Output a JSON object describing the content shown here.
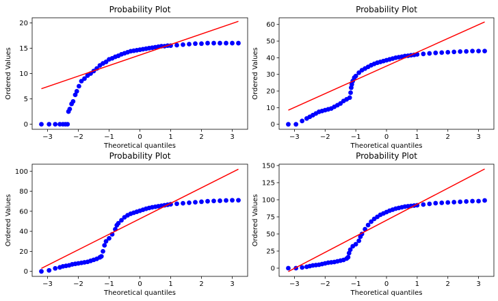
{
  "colors": {
    "points": "#0000ff",
    "fit_line": "#ff0000",
    "axes": "#000000"
  },
  "chart_data": [
    {
      "type": "scatter",
      "title": "Probability Plot",
      "xlabel": "Theoretical quantiles",
      "ylabel": "Ordered Values",
      "xlim": [
        -3.5,
        3.5
      ],
      "ylim": [
        -1,
        21
      ],
      "xticks": [
        -3,
        -2,
        -1,
        0,
        1,
        2,
        3
      ],
      "yticks": [
        0,
        5,
        10,
        15,
        20
      ],
      "fit_line": {
        "x": [
          -3.2,
          3.2
        ],
        "y": [
          7.0,
          20.3
        ]
      },
      "points": [
        [
          -3.2,
          0
        ],
        [
          -2.95,
          0
        ],
        [
          -2.75,
          0
        ],
        [
          -2.6,
          0
        ],
        [
          -2.5,
          0
        ],
        [
          -2.42,
          0
        ],
        [
          -2.35,
          0
        ],
        [
          -2.32,
          2.5
        ],
        [
          -2.28,
          3.0
        ],
        [
          -2.22,
          4.0
        ],
        [
          -2.17,
          4.5
        ],
        [
          -2.1,
          5.8
        ],
        [
          -2.05,
          6.5
        ],
        [
          -1.98,
          7.5
        ],
        [
          -1.9,
          8.5
        ],
        [
          -1.8,
          9.0
        ],
        [
          -1.7,
          9.6
        ],
        [
          -1.6,
          10.0
        ],
        [
          -1.5,
          10.5
        ],
        [
          -1.4,
          11.0
        ],
        [
          -1.3,
          11.6
        ],
        [
          -1.2,
          12.0
        ],
        [
          -1.1,
          12.3
        ],
        [
          -1.0,
          12.8
        ],
        [
          -0.9,
          13.0
        ],
        [
          -0.8,
          13.3
        ],
        [
          -0.7,
          13.5
        ],
        [
          -0.6,
          13.8
        ],
        [
          -0.5,
          14.0
        ],
        [
          -0.4,
          14.2
        ],
        [
          -0.3,
          14.4
        ],
        [
          -0.2,
          14.5
        ],
        [
          -0.1,
          14.6
        ],
        [
          0.0,
          14.7
        ],
        [
          0.1,
          14.8
        ],
        [
          0.2,
          14.9
        ],
        [
          0.3,
          15.0
        ],
        [
          0.4,
          15.1
        ],
        [
          0.5,
          15.2
        ],
        [
          0.6,
          15.3
        ],
        [
          0.7,
          15.4
        ],
        [
          0.8,
          15.4
        ],
        [
          0.9,
          15.5
        ],
        [
          1.0,
          15.5
        ],
        [
          1.2,
          15.6
        ],
        [
          1.4,
          15.7
        ],
        [
          1.6,
          15.8
        ],
        [
          1.8,
          15.9
        ],
        [
          2.0,
          15.9
        ],
        [
          2.2,
          16.0
        ],
        [
          2.4,
          16.0
        ],
        [
          2.6,
          16.0
        ],
        [
          2.8,
          16.0
        ],
        [
          3.0,
          16.0
        ],
        [
          3.2,
          16.0
        ]
      ]
    },
    {
      "type": "scatter",
      "title": "Probability Plot",
      "xlabel": "Theoretical quantiles",
      "ylabel": "Ordered Values",
      "xlim": [
        -3.5,
        3.5
      ],
      "ylim": [
        -3,
        64
      ],
      "xticks": [
        -3,
        -2,
        -1,
        0,
        1,
        2,
        3
      ],
      "yticks": [
        0,
        10,
        20,
        30,
        40,
        50,
        60
      ],
      "fit_line": {
        "x": [
          -3.2,
          3.2
        ],
        "y": [
          8.5,
          61.5
        ]
      },
      "points": [
        [
          -3.2,
          0
        ],
        [
          -2.95,
          0
        ],
        [
          -2.75,
          2
        ],
        [
          -2.6,
          3.5
        ],
        [
          -2.5,
          4.5
        ],
        [
          -2.4,
          5.5
        ],
        [
          -2.3,
          6.5
        ],
        [
          -2.2,
          7.5
        ],
        [
          -2.1,
          8
        ],
        [
          -2.0,
          8.5
        ],
        [
          -1.9,
          9
        ],
        [
          -1.8,
          9.5
        ],
        [
          -1.7,
          10.5
        ],
        [
          -1.6,
          11.5
        ],
        [
          -1.5,
          12.5
        ],
        [
          -1.4,
          14
        ],
        [
          -1.3,
          15
        ],
        [
          -1.2,
          16
        ],
        [
          -1.17,
          19
        ],
        [
          -1.15,
          22
        ],
        [
          -1.13,
          24
        ],
        [
          -1.1,
          26
        ],
        [
          -1.05,
          28
        ],
        [
          -1.0,
          29
        ],
        [
          -0.9,
          31
        ],
        [
          -0.8,
          32.5
        ],
        [
          -0.7,
          33.5
        ],
        [
          -0.6,
          34.5
        ],
        [
          -0.5,
          35.5
        ],
        [
          -0.4,
          36.3
        ],
        [
          -0.3,
          37
        ],
        [
          -0.2,
          37.5
        ],
        [
          -0.1,
          38
        ],
        [
          0.0,
          38.5
        ],
        [
          0.1,
          39
        ],
        [
          0.2,
          39.5
        ],
        [
          0.3,
          40
        ],
        [
          0.4,
          40.3
        ],
        [
          0.5,
          40.6
        ],
        [
          0.6,
          41
        ],
        [
          0.7,
          41.2
        ],
        [
          0.8,
          41.5
        ],
        [
          0.9,
          41.7
        ],
        [
          1.0,
          42
        ],
        [
          1.2,
          42.3
        ],
        [
          1.4,
          42.6
        ],
        [
          1.6,
          42.9
        ],
        [
          1.8,
          43.1
        ],
        [
          2.0,
          43.3
        ],
        [
          2.2,
          43.5
        ],
        [
          2.4,
          43.7
        ],
        [
          2.6,
          43.8
        ],
        [
          2.8,
          44
        ],
        [
          3.0,
          44
        ],
        [
          3.2,
          44
        ]
      ]
    },
    {
      "type": "scatter",
      "title": "Probability Plot",
      "xlabel": "Theoretical quantiles",
      "ylabel": "Ordered Values",
      "xlim": [
        -3.5,
        3.5
      ],
      "ylim": [
        -5,
        107
      ],
      "xticks": [
        -3,
        -2,
        -1,
        0,
        1,
        2,
        3
      ],
      "yticks": [
        0,
        20,
        40,
        60,
        80,
        100
      ],
      "fit_line": {
        "x": [
          -3.2,
          3.2
        ],
        "y": [
          3,
          102
        ]
      },
      "points": [
        [
          -3.2,
          0
        ],
        [
          -2.95,
          1
        ],
        [
          -2.75,
          3
        ],
        [
          -2.6,
          4
        ],
        [
          -2.5,
          5
        ],
        [
          -2.4,
          5.5
        ],
        [
          -2.3,
          6
        ],
        [
          -2.2,
          7
        ],
        [
          -2.1,
          7.5
        ],
        [
          -2.0,
          8
        ],
        [
          -1.9,
          8.5
        ],
        [
          -1.8,
          9
        ],
        [
          -1.7,
          9.5
        ],
        [
          -1.6,
          10.5
        ],
        [
          -1.5,
          11.5
        ],
        [
          -1.4,
          12.5
        ],
        [
          -1.3,
          14
        ],
        [
          -1.25,
          15
        ],
        [
          -1.2,
          20
        ],
        [
          -1.15,
          26
        ],
        [
          -1.1,
          30
        ],
        [
          -1.0,
          33
        ],
        [
          -0.9,
          37
        ],
        [
          -0.8,
          42
        ],
        [
          -0.75,
          46
        ],
        [
          -0.7,
          48
        ],
        [
          -0.6,
          51
        ],
        [
          -0.5,
          54
        ],
        [
          -0.4,
          56
        ],
        [
          -0.3,
          57.5
        ],
        [
          -0.2,
          58.5
        ],
        [
          -0.1,
          59.5
        ],
        [
          0.0,
          60.5
        ],
        [
          0.1,
          61.5
        ],
        [
          0.2,
          62.5
        ],
        [
          0.3,
          63.3
        ],
        [
          0.4,
          64
        ],
        [
          0.5,
          64.5
        ],
        [
          0.6,
          65
        ],
        [
          0.7,
          65.5
        ],
        [
          0.8,
          66
        ],
        [
          0.9,
          66.5
        ],
        [
          1.0,
          67
        ],
        [
          1.2,
          67.5
        ],
        [
          1.4,
          68
        ],
        [
          1.6,
          68.5
        ],
        [
          1.8,
          69
        ],
        [
          2.0,
          69.5
        ],
        [
          2.2,
          70
        ],
        [
          2.4,
          70.3
        ],
        [
          2.6,
          70.5
        ],
        [
          2.8,
          70.8
        ],
        [
          3.0,
          71
        ],
        [
          3.2,
          71
        ]
      ]
    },
    {
      "type": "scatter",
      "title": "Probability Plot",
      "xlabel": "Theoretical quantiles",
      "ylabel": "Ordered Values",
      "xlim": [
        -3.5,
        3.5
      ],
      "ylim": [
        -12,
        152
      ],
      "xticks": [
        -3,
        -2,
        -1,
        0,
        1,
        2,
        3
      ],
      "yticks": [
        0,
        25,
        50,
        75,
        100,
        125,
        150
      ],
      "fit_line": {
        "x": [
          -3.2,
          3.2
        ],
        "y": [
          -5,
          145
        ]
      },
      "points": [
        [
          -3.2,
          0
        ],
        [
          -2.95,
          0
        ],
        [
          -2.75,
          1
        ],
        [
          -2.6,
          2
        ],
        [
          -2.5,
          3
        ],
        [
          -2.4,
          4
        ],
        [
          -2.3,
          4.5
        ],
        [
          -2.2,
          5
        ],
        [
          -2.1,
          6
        ],
        [
          -2.0,
          7
        ],
        [
          -1.9,
          8
        ],
        [
          -1.8,
          8.5
        ],
        [
          -1.7,
          9
        ],
        [
          -1.6,
          10
        ],
        [
          -1.5,
          11
        ],
        [
          -1.4,
          12
        ],
        [
          -1.3,
          14
        ],
        [
          -1.25,
          16
        ],
        [
          -1.22,
          22
        ],
        [
          -1.18,
          27
        ],
        [
          -1.1,
          32
        ],
        [
          -1.0,
          35
        ],
        [
          -0.9,
          40
        ],
        [
          -0.85,
          46
        ],
        [
          -0.8,
          50
        ],
        [
          -0.7,
          57
        ],
        [
          -0.6,
          63
        ],
        [
          -0.5,
          68
        ],
        [
          -0.4,
          72
        ],
        [
          -0.3,
          75
        ],
        [
          -0.2,
          78
        ],
        [
          -0.1,
          80
        ],
        [
          0.0,
          82
        ],
        [
          0.1,
          84
        ],
        [
          0.2,
          85.5
        ],
        [
          0.3,
          87
        ],
        [
          0.4,
          88
        ],
        [
          0.5,
          89
        ],
        [
          0.6,
          90
        ],
        [
          0.7,
          90.5
        ],
        [
          0.8,
          91
        ],
        [
          0.9,
          91.5
        ],
        [
          1.0,
          92
        ],
        [
          1.2,
          93
        ],
        [
          1.4,
          94
        ],
        [
          1.6,
          95
        ],
        [
          1.8,
          95.5
        ],
        [
          2.0,
          96
        ],
        [
          2.2,
          96.5
        ],
        [
          2.4,
          97
        ],
        [
          2.6,
          97.5
        ],
        [
          2.8,
          98
        ],
        [
          3.0,
          98
        ],
        [
          3.2,
          99
        ]
      ]
    }
  ]
}
